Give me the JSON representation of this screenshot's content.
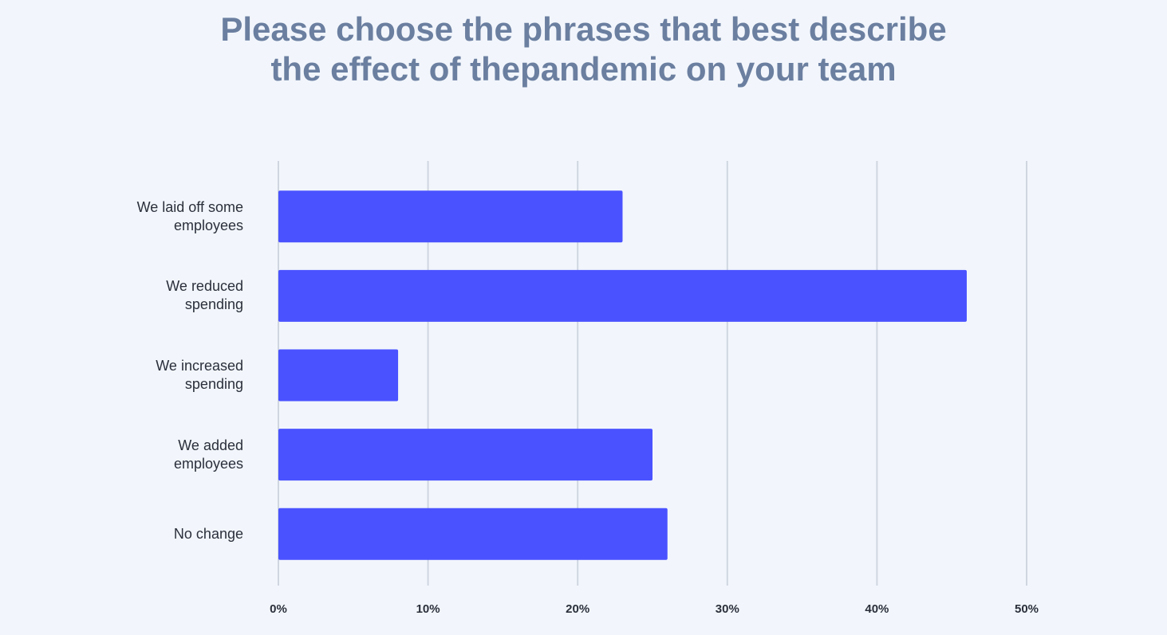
{
  "chart_data": {
    "type": "bar",
    "orientation": "horizontal",
    "title": "Please choose the phrases that best describe\nthe effect of thepandemic on your team",
    "categories": [
      "We laid off some\nemployees",
      "We reduced\nspending",
      "We increased\nspending",
      "We added\nemployees",
      "No change"
    ],
    "values": [
      23,
      46,
      8,
      25,
      26
    ],
    "color": "#4a52ff",
    "xlim": [
      0,
      50
    ],
    "xticks": [
      {
        "value": 0,
        "label": "0%"
      },
      {
        "value": 10,
        "label": "10%"
      },
      {
        "value": 20,
        "label": "20%"
      },
      {
        "value": 30,
        "label": "30%"
      },
      {
        "value": 40,
        "label": "40%"
      },
      {
        "value": 50,
        "label": "50%"
      }
    ],
    "grid": true
  }
}
